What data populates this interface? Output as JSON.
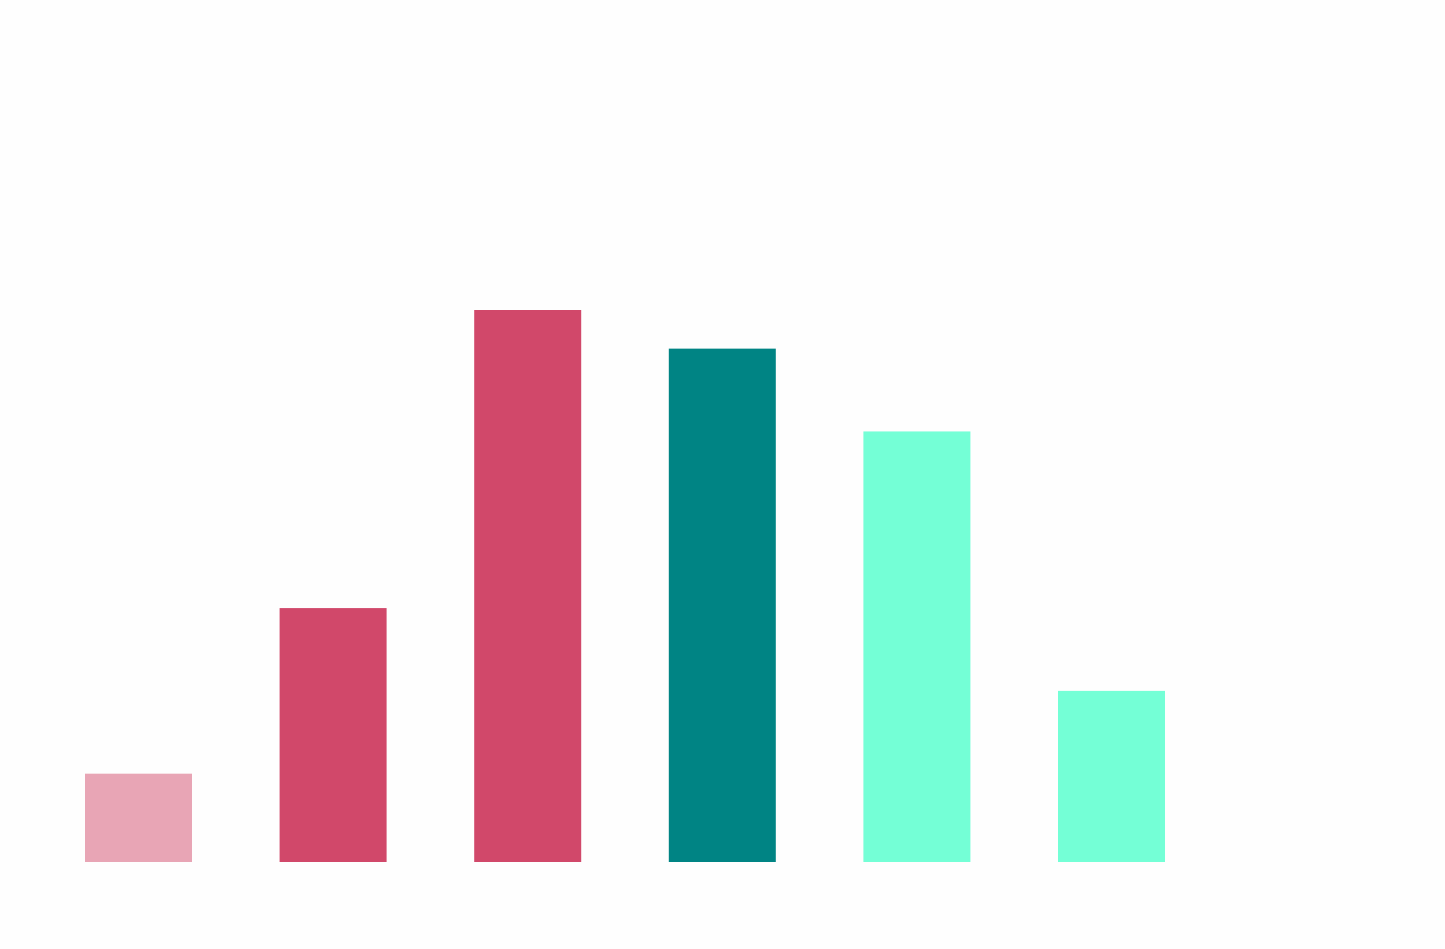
{
  "chart_data": {
    "type": "bar",
    "title": "",
    "xlabel": "",
    "ylabel": "",
    "categories": [
      "",
      "",
      "",
      "",
      "",
      ""
    ],
    "values": [
      1.6,
      4.6,
      10.0,
      9.3,
      7.8,
      3.1
    ],
    "colors": [
      "#e8a5b5",
      "#d1486a",
      "#d1486a",
      "#008484",
      "#74ffd6",
      "#74ffd6"
    ],
    "ylim": [
      0,
      15
    ],
    "grid": false,
    "legend": "none",
    "axes_visible": false
  }
}
